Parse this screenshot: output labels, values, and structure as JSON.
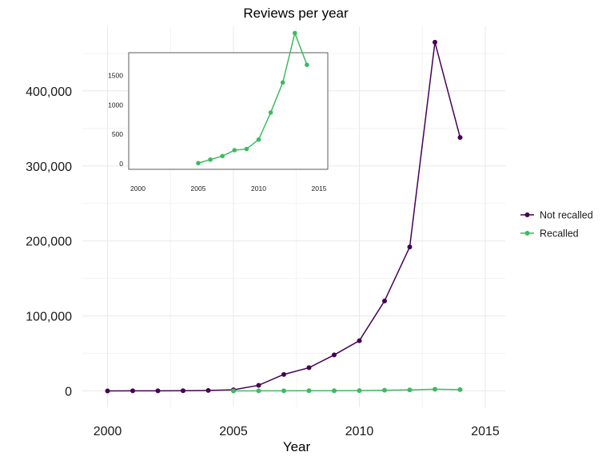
{
  "chart_data": [
    {
      "type": "line",
      "title": "Reviews per year",
      "xlabel": "Year",
      "ylabel": "",
      "xlim": [
        2000,
        2015
      ],
      "ylim": [
        0,
        400000
      ],
      "x_ticks": [
        "2000",
        "2005",
        "2010",
        "2015"
      ],
      "y_ticks": [
        "0",
        "100,000",
        "200,000",
        "300,000",
        "400,000"
      ],
      "grid": true,
      "legend_position": "right",
      "series": [
        {
          "name": "Not recalled",
          "color": "#440154",
          "x": [
            2000,
            2001,
            2002,
            2003,
            2004,
            2005,
            2006,
            2007,
            2008,
            2009,
            2010,
            2011,
            2012,
            2013,
            2014
          ],
          "values": [
            50,
            100,
            150,
            300,
            600,
            1500,
            7500,
            22000,
            31000,
            48000,
            67000,
            120000,
            192000,
            465000,
            338000
          ]
        },
        {
          "name": "Recalled",
          "color": "#3CBB5F",
          "x": [
            2005,
            2006,
            2007,
            2008,
            2009,
            2010,
            2011,
            2012,
            2013,
            2014
          ],
          "values": [
            10,
            70,
            130,
            230,
            250,
            410,
            870,
            1380,
            2220,
            1680
          ]
        }
      ]
    },
    {
      "type": "line",
      "title": "",
      "xlabel": "",
      "ylabel": "",
      "xlim": [
        2000,
        2015
      ],
      "ylim": [
        0,
        1500
      ],
      "x_ticks": [
        "2000",
        "2005",
        "2010",
        "2015"
      ],
      "y_ticks": [
        "0",
        "500",
        "1000",
        "1500"
      ],
      "grid": false,
      "series": [
        {
          "color": "#3CBB5F",
          "x": [
            2005,
            2006,
            2007,
            2008,
            2009,
            2010,
            2011,
            2012,
            2013,
            2014
          ],
          "values": [
            10,
            70,
            130,
            230,
            250,
            410,
            870,
            1380,
            2220,
            1680
          ]
        }
      ]
    }
  ]
}
